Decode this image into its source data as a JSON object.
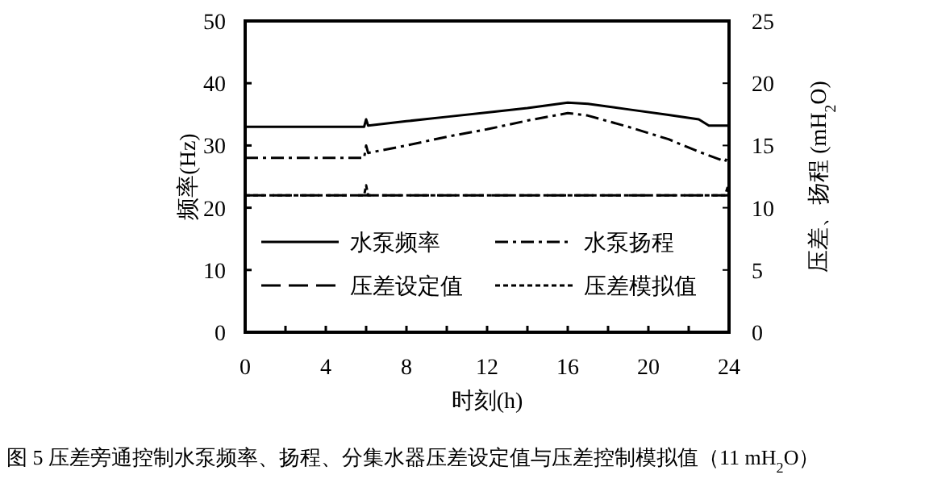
{
  "chart_data": {
    "type": "line",
    "xlabel": "时刻(h)",
    "ylabel": "频率(Hz)",
    "y2label": "压差、扬程 (mH$_{2}$O)",
    "annotations": [
      "图 5 压差旁通控制水泵频率、扬程、分集水器压差设定值与压差控制模拟值（11 mH$_{2}$O）"
    ],
    "xlim": [
      0,
      24
    ],
    "ylim": [
      0,
      50
    ],
    "y2lim": [
      0,
      25
    ],
    "xticks": [
      0,
      {
        "value": 2,
        "label": null
      },
      4,
      {
        "value": 6,
        "label": null
      },
      8,
      {
        "value": 10,
        "label": null
      },
      12,
      {
        "value": 14,
        "label": null
      },
      16,
      {
        "value": 18,
        "label": null
      },
      20,
      {
        "value": 22,
        "label": null
      },
      24
    ],
    "yticks": [
      0,
      10,
      20,
      30,
      40,
      50
    ],
    "y2ticks": [
      0,
      5,
      10,
      15,
      20,
      25
    ],
    "legend": "bottom left",
    "series": [
      {
        "name": "水泵频率",
        "color": "#000000",
        "line_style": "solid",
        "x": [
          0,
          5.9,
          6,
          6.1,
          8,
          10,
          12,
          14,
          16,
          17,
          19,
          21,
          22.5,
          23,
          24
        ],
        "values": [
          33,
          33,
          34.2,
          33.2,
          33.9,
          34.6,
          35.3,
          36.0,
          36.9,
          36.7,
          35.8,
          34.9,
          34.2,
          33.2,
          33.2
        ]
      },
      {
        "name": "水泵扬程",
        "color": "#000000",
        "line_style": "dashdot",
        "axis": "y2",
        "x": [
          0,
          5.9,
          6,
          6.1,
          8,
          10,
          12,
          14,
          16,
          17,
          19,
          21,
          22.5,
          23.5,
          23.8,
          24
        ],
        "values": [
          14,
          14,
          15,
          14.4,
          15,
          15.7,
          16.3,
          17,
          17.6,
          17.4,
          16.5,
          15.5,
          14.5,
          13.9,
          13.7,
          14.3
        ]
      },
      {
        "name": "压差设定值",
        "color": "#000000",
        "line_style": "dashed",
        "axis": "y2",
        "x": [
          0,
          24
        ],
        "values": [
          11,
          11
        ]
      },
      {
        "name": "压差模拟值",
        "color": "#000000",
        "line_style": "dotted",
        "axis": "y2",
        "x": [
          0,
          5.9,
          6,
          6.1,
          23.8,
          24
        ],
        "values": [
          11,
          11,
          11.8,
          11,
          11,
          12
        ]
      }
    ]
  }
}
